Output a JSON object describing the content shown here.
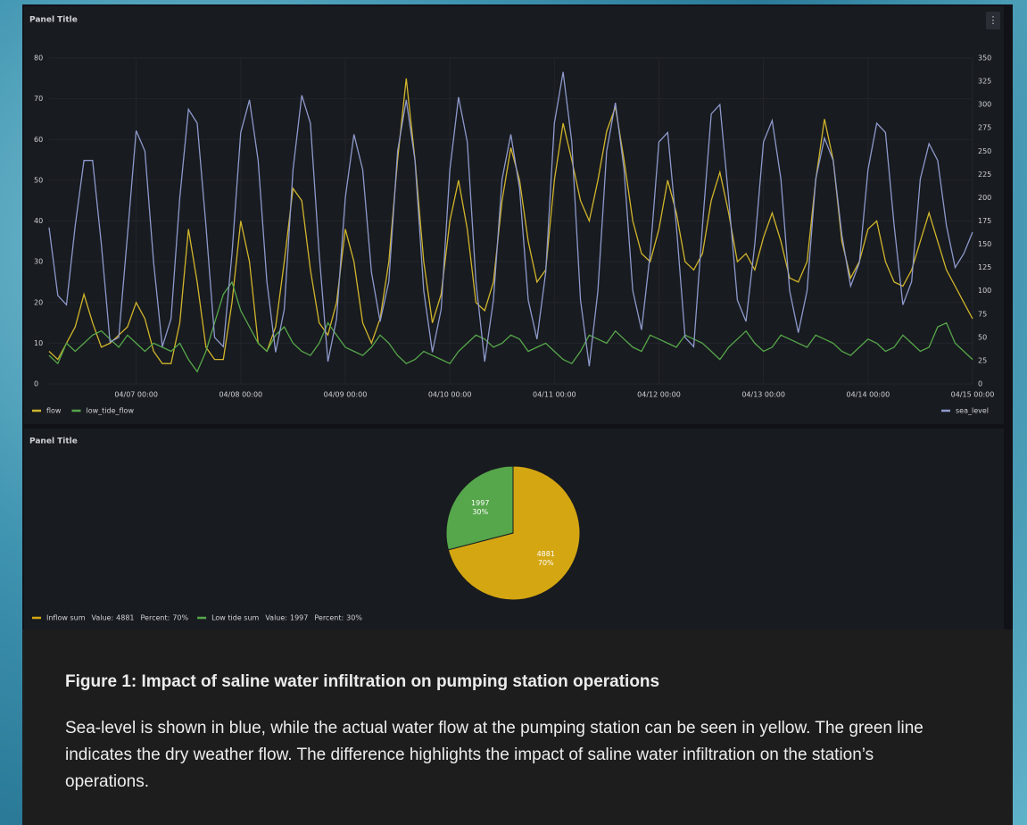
{
  "chart_data": [
    {
      "type": "line",
      "title": "Panel Title",
      "legend": "bottom",
      "grid": true,
      "categories": [
        null,
        null,
        null,
        null,
        null,
        null,
        null,
        null,
        null,
        null,
        "04/07 00:00",
        null,
        null,
        null,
        null,
        null,
        null,
        null,
        null,
        null,
        null,
        null,
        "04/08 00:00",
        null,
        null,
        null,
        null,
        null,
        null,
        null,
        null,
        null,
        null,
        null,
        "04/09 00:00",
        null,
        null,
        null,
        null,
        null,
        null,
        null,
        null,
        null,
        null,
        null,
        "04/10 00:00",
        null,
        null,
        null,
        null,
        null,
        null,
        null,
        null,
        null,
        null,
        null,
        "04/11 00:00",
        null,
        null,
        null,
        null,
        null,
        null,
        null,
        null,
        null,
        null,
        null,
        "04/12 00:00",
        null,
        null,
        null,
        null,
        null,
        null,
        null,
        null,
        null,
        null,
        null,
        "04/13 00:00",
        null,
        null,
        null,
        null,
        null,
        null,
        null,
        null,
        null,
        null,
        null,
        "04/14 00:00",
        null,
        null,
        null,
        null,
        null,
        null,
        null,
        null,
        null,
        null,
        null,
        "04/15 00:00"
      ],
      "ylim": [
        0,
        80
      ],
      "yticks": [
        0,
        10,
        20,
        30,
        40,
        50,
        60,
        70,
        80
      ],
      "y2lim": [
        0,
        350
      ],
      "y2ticks": [
        0,
        25,
        50,
        75,
        100,
        125,
        150,
        175,
        200,
        225,
        250,
        275,
        300,
        325,
        350
      ],
      "series": [
        {
          "name": "flow",
          "color": "#d1b52c",
          "values": [
            8,
            6,
            10,
            14,
            22,
            15,
            9,
            10,
            12,
            14,
            20,
            16,
            8,
            5,
            5,
            15,
            38,
            25,
            9,
            6,
            6,
            20,
            40,
            30,
            10,
            8,
            14,
            30,
            48,
            45,
            28,
            15,
            12,
            20,
            38,
            30,
            15,
            10,
            16,
            30,
            55,
            75,
            55,
            30,
            15,
            22,
            40,
            50,
            38,
            20,
            18,
            25,
            45,
            58,
            50,
            35,
            25,
            28,
            50,
            64,
            55,
            45,
            40,
            50,
            62,
            68,
            55,
            40,
            32,
            30,
            38,
            50,
            42,
            30,
            28,
            32,
            45,
            52,
            42,
            30,
            32,
            28,
            36,
            42,
            35,
            26,
            25,
            30,
            50,
            65,
            55,
            35,
            26,
            30,
            38,
            40,
            30,
            25,
            24,
            28,
            35,
            42,
            35,
            28,
            24,
            20,
            16
          ]
        },
        {
          "name": "low_tide_flow",
          "color": "#56a64b",
          "values": [
            7,
            5,
            10,
            8,
            10,
            12,
            13,
            11,
            9,
            12,
            10,
            8,
            10,
            9,
            8,
            10,
            6,
            3,
            8,
            15,
            22,
            25,
            18,
            14,
            10,
            8,
            12,
            14,
            10,
            8,
            7,
            10,
            15,
            12,
            9,
            8,
            7,
            9,
            12,
            10,
            7,
            5,
            6,
            8,
            7,
            6,
            5,
            8,
            10,
            12,
            11,
            9,
            10,
            12,
            11,
            8,
            9,
            10,
            8,
            6,
            5,
            8,
            12,
            11,
            10,
            13,
            11,
            9,
            8,
            12,
            11,
            10,
            9,
            12,
            11,
            10,
            8,
            6,
            9,
            11,
            13,
            10,
            8,
            9,
            12,
            11,
            10,
            9,
            12,
            11,
            10,
            8,
            7,
            9,
            11,
            10,
            8,
            9,
            12,
            10,
            8,
            9,
            14,
            15,
            10,
            8,
            6
          ]
        },
        {
          "name": "sea_level",
          "color": "#8e99cc",
          "axis": "y2",
          "values": [
            168,
            95,
            85,
            170,
            240,
            240,
            150,
            45,
            50,
            160,
            272,
            250,
            130,
            40,
            70,
            200,
            295,
            280,
            170,
            50,
            40,
            140,
            270,
            305,
            240,
            110,
            34,
            80,
            230,
            310,
            280,
            140,
            24,
            70,
            200,
            268,
            230,
            120,
            67,
            110,
            250,
            305,
            240,
            100,
            34,
            80,
            230,
            308,
            260,
            110,
            24,
            90,
            220,
            268,
            210,
            90,
            48,
            120,
            280,
            335,
            260,
            90,
            19,
            100,
            250,
            302,
            230,
            100,
            58,
            140,
            260,
            270,
            170,
            50,
            40,
            170,
            290,
            300,
            200,
            90,
            67,
            150,
            260,
            283,
            220,
            100,
            55,
            100,
            220,
            264,
            240,
            160,
            105,
            130,
            230,
            280,
            270,
            170,
            85,
            110,
            220,
            258,
            240,
            170,
            125,
            140,
            163
          ]
        }
      ]
    },
    {
      "type": "pie",
      "title": "Panel Title",
      "legend": "bottom-left",
      "legend_value_label": "Value:",
      "legend_percent_label": "Percent:",
      "series": [
        {
          "name": "Inflow sum",
          "color": "#d4a612",
          "value": 4881,
          "percent": 70,
          "percent_label": "70%"
        },
        {
          "name": "Low tide sum",
          "color": "#56a64b",
          "value": 1997,
          "percent": 30,
          "percent_label": "30%"
        }
      ]
    }
  ],
  "caption": {
    "title": "Figure 1: Impact of saline water infiltration on pumping station operations",
    "body": "Sea-level is shown in blue, while the actual water flow at the pumping station can be seen in yellow. The green line indicates the dry weather flow. The difference highlights the impact of saline water infiltration on the station’s operations."
  }
}
